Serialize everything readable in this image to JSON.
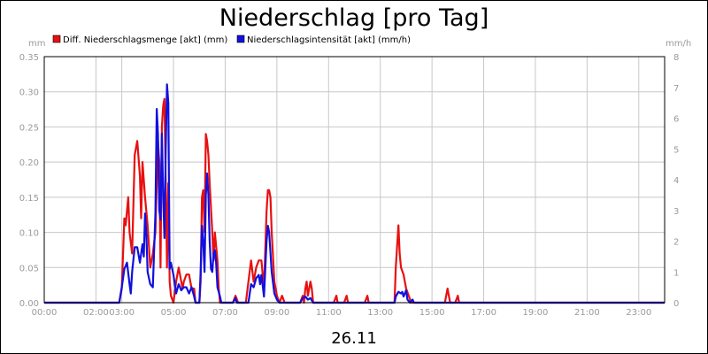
{
  "chart_data": {
    "type": "line",
    "title": "Niederschlag [pro Tag]",
    "date_label": "26.11",
    "left_unit": "mm",
    "right_unit": "mm/h",
    "x_ticks": [
      "00:00",
      "02:00",
      "03:00",
      "05:00",
      "07:00",
      "09:00",
      "11:00",
      "13:00",
      "15:00",
      "17:00",
      "19:00",
      "21:00",
      "23:00"
    ],
    "x_tick_hours": [
      0,
      2,
      3,
      5,
      7,
      9,
      11,
      13,
      15,
      17,
      19,
      21,
      23
    ],
    "xlim_hours": [
      0,
      24
    ],
    "left_axis": {
      "ylim": [
        0,
        0.35
      ],
      "ticks": [
        "0.00",
        "0.05",
        "0.10",
        "0.15",
        "0.20",
        "0.25",
        "0.30",
        "0.35"
      ]
    },
    "right_axis": {
      "ylim": [
        0,
        8
      ],
      "ticks": [
        "0",
        "1",
        "2",
        "3",
        "4",
        "5",
        "6",
        "7",
        "8"
      ]
    },
    "grid": true,
    "legend_position": "top-left",
    "series": [
      {
        "name": "Diff. Niederschlagsmenge [akt] (mm)",
        "color": "#e81010",
        "axis": "left",
        "points": [
          [
            0,
            0
          ],
          [
            2.9,
            0
          ],
          [
            3.0,
            0.02
          ],
          [
            3.1,
            0.12
          ],
          [
            3.15,
            0.11
          ],
          [
            3.25,
            0.15
          ],
          [
            3.3,
            0.1
          ],
          [
            3.4,
            0.07
          ],
          [
            3.5,
            0.21
          ],
          [
            3.6,
            0.23
          ],
          [
            3.7,
            0.18
          ],
          [
            3.75,
            0.12
          ],
          [
            3.8,
            0.2
          ],
          [
            3.9,
            0.15
          ],
          [
            4.0,
            0.11
          ],
          [
            4.1,
            0.05
          ],
          [
            4.2,
            0.07
          ],
          [
            4.3,
            0.1
          ],
          [
            4.4,
            0.23
          ],
          [
            4.45,
            0.2
          ],
          [
            4.5,
            0.05
          ],
          [
            4.55,
            0.25
          ],
          [
            4.6,
            0.28
          ],
          [
            4.65,
            0.29
          ],
          [
            4.7,
            0.17
          ],
          [
            4.75,
            0.05
          ],
          [
            4.8,
            0.17
          ],
          [
            4.85,
            0.03
          ],
          [
            4.9,
            0.01
          ],
          [
            5.0,
            0.0
          ],
          [
            5.1,
            0.03
          ],
          [
            5.2,
            0.05
          ],
          [
            5.3,
            0.03
          ],
          [
            5.35,
            0.02
          ],
          [
            5.4,
            0.03
          ],
          [
            5.5,
            0.04
          ],
          [
            5.6,
            0.04
          ],
          [
            5.7,
            0.02
          ],
          [
            5.8,
            0.02
          ],
          [
            5.85,
            0.0
          ],
          [
            6.0,
            0.0
          ],
          [
            6.05,
            0.03
          ],
          [
            6.1,
            0.15
          ],
          [
            6.15,
            0.16
          ],
          [
            6.2,
            0.1
          ],
          [
            6.25,
            0.24
          ],
          [
            6.3,
            0.23
          ],
          [
            6.35,
            0.21
          ],
          [
            6.4,
            0.17
          ],
          [
            6.5,
            0.1
          ],
          [
            6.55,
            0.06
          ],
          [
            6.6,
            0.1
          ],
          [
            6.7,
            0.06
          ],
          [
            6.75,
            0.02
          ],
          [
            6.8,
            0.0
          ],
          [
            7.3,
            0.0
          ],
          [
            7.4,
            0.01
          ],
          [
            7.5,
            0.0
          ],
          [
            7.8,
            0.0
          ],
          [
            7.9,
            0.03
          ],
          [
            8.0,
            0.06
          ],
          [
            8.1,
            0.03
          ],
          [
            8.2,
            0.05
          ],
          [
            8.3,
            0.06
          ],
          [
            8.4,
            0.06
          ],
          [
            8.5,
            0.02
          ],
          [
            8.6,
            0.13
          ],
          [
            8.65,
            0.16
          ],
          [
            8.7,
            0.16
          ],
          [
            8.75,
            0.15
          ],
          [
            8.8,
            0.1
          ],
          [
            8.9,
            0.03
          ],
          [
            9.0,
            0.01
          ],
          [
            9.1,
            0.0
          ],
          [
            9.2,
            0.01
          ],
          [
            9.3,
            0.0
          ],
          [
            9.9,
            0.0
          ],
          [
            10.0,
            0.01
          ],
          [
            10.05,
            0.0
          ],
          [
            10.1,
            0.02
          ],
          [
            10.15,
            0.03
          ],
          [
            10.2,
            0.01
          ],
          [
            10.3,
            0.03
          ],
          [
            10.35,
            0.02
          ],
          [
            10.4,
            0.0
          ],
          [
            11.2,
            0.0
          ],
          [
            11.3,
            0.01
          ],
          [
            11.35,
            0.0
          ],
          [
            11.6,
            0.0
          ],
          [
            11.7,
            0.01
          ],
          [
            11.75,
            0.0
          ],
          [
            12.4,
            0.0
          ],
          [
            12.5,
            0.01
          ],
          [
            12.55,
            0.0
          ],
          [
            13.55,
            0.0
          ],
          [
            13.6,
            0.05
          ],
          [
            13.65,
            0.08
          ],
          [
            13.7,
            0.11
          ],
          [
            13.75,
            0.07
          ],
          [
            13.8,
            0.05
          ],
          [
            13.9,
            0.04
          ],
          [
            14.0,
            0.02
          ],
          [
            14.1,
            0.01
          ],
          [
            14.2,
            0.0
          ],
          [
            15.5,
            0.0
          ],
          [
            15.6,
            0.02
          ],
          [
            15.7,
            0.0
          ],
          [
            15.9,
            0.0
          ],
          [
            16.0,
            0.01
          ],
          [
            16.05,
            0.0
          ],
          [
            24,
            0
          ]
        ]
      },
      {
        "name": "Niederschlagsintensität [akt] (mm/h)",
        "color": "#1010e0",
        "axis": "right",
        "points": [
          [
            0,
            0
          ],
          [
            2.9,
            0
          ],
          [
            3.0,
            0.5
          ],
          [
            3.1,
            1.1
          ],
          [
            3.2,
            1.3
          ],
          [
            3.3,
            0.6
          ],
          [
            3.35,
            0.3
          ],
          [
            3.4,
            1.0
          ],
          [
            3.5,
            1.8
          ],
          [
            3.6,
            1.8
          ],
          [
            3.7,
            1.3
          ],
          [
            3.75,
            1.6
          ],
          [
            3.8,
            1.9
          ],
          [
            3.85,
            1.5
          ],
          [
            3.9,
            2.9
          ],
          [
            3.95,
            2.2
          ],
          [
            4.0,
            1.0
          ],
          [
            4.1,
            0.6
          ],
          [
            4.2,
            0.5
          ],
          [
            4.3,
            2.9
          ],
          [
            4.35,
            6.3
          ],
          [
            4.4,
            5.5
          ],
          [
            4.45,
            3.0
          ],
          [
            4.5,
            2.7
          ],
          [
            4.55,
            5.5
          ],
          [
            4.6,
            3.5
          ],
          [
            4.65,
            2.1
          ],
          [
            4.7,
            5.0
          ],
          [
            4.75,
            7.1
          ],
          [
            4.8,
            6.5
          ],
          [
            4.85,
            1.1
          ],
          [
            4.9,
            1.3
          ],
          [
            5.0,
            0.9
          ],
          [
            5.1,
            0.3
          ],
          [
            5.2,
            0.6
          ],
          [
            5.3,
            0.4
          ],
          [
            5.4,
            0.5
          ],
          [
            5.5,
            0.5
          ],
          [
            5.6,
            0.3
          ],
          [
            5.7,
            0.5
          ],
          [
            5.8,
            0.2
          ],
          [
            5.85,
            0.0
          ],
          [
            6.0,
            0.0
          ],
          [
            6.05,
            1.0
          ],
          [
            6.1,
            2.5
          ],
          [
            6.15,
            2.0
          ],
          [
            6.2,
            1.0
          ],
          [
            6.25,
            3.5
          ],
          [
            6.3,
            4.2
          ],
          [
            6.35,
            3.5
          ],
          [
            6.4,
            2.0
          ],
          [
            6.45,
            1.1
          ],
          [
            6.5,
            1.0
          ],
          [
            6.55,
            1.6
          ],
          [
            6.6,
            1.7
          ],
          [
            6.65,
            1.3
          ],
          [
            6.7,
            0.5
          ],
          [
            6.8,
            0.2
          ],
          [
            6.85,
            0.0
          ],
          [
            7.3,
            0.0
          ],
          [
            7.4,
            0.15
          ],
          [
            7.45,
            0.0
          ],
          [
            7.9,
            0.0
          ],
          [
            8.0,
            0.6
          ],
          [
            8.1,
            0.5
          ],
          [
            8.2,
            0.8
          ],
          [
            8.3,
            0.9
          ],
          [
            8.35,
            0.6
          ],
          [
            8.4,
            0.9
          ],
          [
            8.5,
            0.2
          ],
          [
            8.6,
            2.0
          ],
          [
            8.65,
            2.5
          ],
          [
            8.7,
            2.3
          ],
          [
            8.8,
            1.0
          ],
          [
            8.9,
            0.3
          ],
          [
            9.0,
            0.1
          ],
          [
            9.1,
            0.0
          ],
          [
            9.9,
            0.0
          ],
          [
            10.0,
            0.15
          ],
          [
            10.1,
            0.2
          ],
          [
            10.2,
            0.1
          ],
          [
            10.3,
            0.15
          ],
          [
            10.4,
            0.0
          ],
          [
            13.55,
            0.0
          ],
          [
            13.6,
            0.2
          ],
          [
            13.7,
            0.35
          ],
          [
            13.8,
            0.3
          ],
          [
            13.85,
            0.35
          ],
          [
            13.9,
            0.2
          ],
          [
            14.0,
            0.4
          ],
          [
            14.05,
            0.1
          ],
          [
            14.15,
            0.0
          ],
          [
            14.25,
            0.1
          ],
          [
            14.3,
            0.0
          ],
          [
            24,
            0
          ]
        ]
      }
    ]
  }
}
